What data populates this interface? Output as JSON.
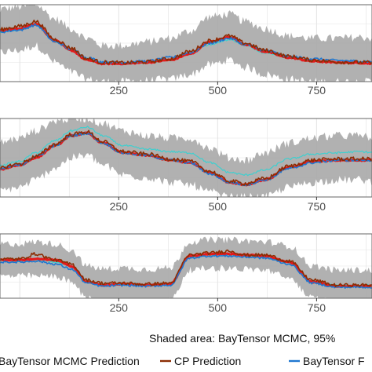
{
  "caption": "Shaded area: BayTensor MCMC, 95%",
  "legend": {
    "entries": [
      {
        "label": "BayTensor MCMC Prediction",
        "color": "#e41a1c",
        "icon": "line-swatch"
      },
      {
        "label": "CP Prediction",
        "color": "#8c2d04",
        "icon": "line-swatch"
      },
      {
        "label": "BayTensor F",
        "color": "#1f77d0",
        "icon": "line-swatch"
      }
    ]
  },
  "colors": {
    "band": "#a9a9a9",
    "mcmc": "#e41a1c",
    "cp": "#8c2d04",
    "other": "#1f77d0",
    "extra": "#3fcfcf",
    "grid": "#e3e3e3",
    "frame": "#666666"
  },
  "chart_data": [
    {
      "type": "line",
      "panel": 1,
      "xlim": [
        -60,
        900
      ],
      "ylim": [
        -1.6,
        1.6
      ],
      "x_ticks": [
        250,
        500,
        750
      ],
      "x_tick_labels": [
        "250",
        "500",
        "750"
      ],
      "grid": true,
      "anchors_x": [
        -60,
        0,
        40,
        90,
        130,
        170,
        210,
        260,
        320,
        380,
        430,
        480,
        530,
        570,
        620,
        680,
        740,
        800,
        860,
        900
      ],
      "series": [
        {
          "name": "BayTensor MCMC Prediction",
          "values": [
            0.5,
            0.6,
            0.8,
            0.1,
            -0.3,
            -0.7,
            -0.85,
            -0.85,
            -0.8,
            -0.7,
            -0.45,
            0.05,
            0.25,
            -0.05,
            -0.35,
            -0.6,
            -0.75,
            -0.8,
            -0.82,
            -0.85
          ]
        },
        {
          "name": "CP Prediction",
          "values": [
            0.55,
            0.7,
            0.9,
            0.15,
            -0.2,
            -0.65,
            -0.8,
            -0.82,
            -0.78,
            -0.65,
            -0.35,
            0.1,
            0.3,
            0.0,
            -0.3,
            -0.55,
            -0.7,
            -0.78,
            -0.8,
            -0.82
          ]
        },
        {
          "name": "BayTensor F",
          "values": [
            0.45,
            0.55,
            0.75,
            0.05,
            -0.25,
            -0.6,
            -0.78,
            -0.8,
            -0.75,
            -0.6,
            -0.4,
            0.0,
            0.2,
            -0.05,
            -0.3,
            -0.55,
            -0.65,
            -0.72,
            -0.75,
            -0.78
          ]
        },
        {
          "name": "",
          "values": [
            0.45,
            0.55,
            0.75,
            0.05,
            -0.3,
            -0.65,
            -0.82,
            -0.85,
            -0.82,
            -0.7,
            -0.45,
            -0.05,
            0.15,
            -0.1,
            -0.4,
            -0.6,
            -0.72,
            -0.78,
            -0.8,
            -0.82
          ]
        }
      ],
      "band": {
        "upper": [
          1.4,
          1.5,
          1.6,
          1.0,
          0.6,
          0.2,
          -0.1,
          -0.1,
          0.05,
          0.2,
          0.5,
          1.1,
          1.2,
          0.9,
          0.6,
          0.3,
          0.2,
          0.2,
          0.25,
          0.2
        ],
        "lower": [
          -0.4,
          -0.3,
          -0.1,
          -0.8,
          -1.2,
          -1.5,
          -1.6,
          -1.6,
          -1.55,
          -1.5,
          -1.3,
          -0.9,
          -0.7,
          -1.0,
          -1.3,
          -1.5,
          -1.6,
          -1.6,
          -1.6,
          -1.6
        ]
      }
    },
    {
      "type": "line",
      "panel": 2,
      "xlim": [
        -60,
        900
      ],
      "ylim": [
        -1.6,
        1.6
      ],
      "x_ticks": [
        250,
        500,
        750
      ],
      "x_tick_labels": [
        "250",
        "500",
        "750"
      ],
      "grid": true,
      "anchors_x": [
        -60,
        0,
        40,
        90,
        130,
        170,
        210,
        260,
        320,
        380,
        430,
        480,
        530,
        570,
        620,
        680,
        740,
        800,
        860,
        900
      ],
      "series": [
        {
          "name": "BayTensor MCMC Prediction",
          "values": [
            -0.5,
            -0.3,
            0.0,
            0.5,
            0.9,
            1.0,
            0.6,
            0.2,
            0.1,
            -0.1,
            -0.2,
            -0.6,
            -1.0,
            -1.1,
            -0.9,
            -0.4,
            -0.15,
            -0.1,
            -0.1,
            -0.1
          ]
        },
        {
          "name": "CP Prediction",
          "values": [
            -0.45,
            -0.25,
            0.05,
            0.55,
            0.95,
            1.05,
            0.65,
            0.25,
            0.15,
            -0.05,
            -0.15,
            -0.55,
            -0.95,
            -1.05,
            -0.85,
            -0.35,
            -0.1,
            -0.05,
            -0.05,
            -0.05
          ]
        },
        {
          "name": "BayTensor F",
          "values": [
            -0.5,
            -0.3,
            0.05,
            0.5,
            0.9,
            1.0,
            0.6,
            0.2,
            0.1,
            -0.1,
            -0.2,
            -0.65,
            -1.0,
            -1.1,
            -0.9,
            -0.45,
            -0.2,
            -0.1,
            -0.1,
            -0.1
          ]
        },
        {
          "name": "",
          "values": [
            -0.35,
            -0.15,
            0.2,
            0.7,
            1.1,
            1.25,
            0.9,
            0.5,
            0.35,
            0.25,
            0.2,
            -0.2,
            -0.6,
            -0.7,
            -0.5,
            -0.05,
            0.15,
            0.2,
            0.25,
            0.2
          ]
        }
      ],
      "band": {
        "upper": [
          0.6,
          0.8,
          1.1,
          1.5,
          1.6,
          1.6,
          1.4,
          1.1,
          0.9,
          0.8,
          0.8,
          0.4,
          0.0,
          -0.1,
          0.2,
          0.6,
          0.8,
          0.9,
          0.9,
          0.8
        ],
        "lower": [
          -1.4,
          -1.2,
          -0.9,
          -0.4,
          0.0,
          0.1,
          -0.3,
          -0.7,
          -0.8,
          -1.0,
          -1.1,
          -1.4,
          -1.6,
          -1.6,
          -1.6,
          -1.2,
          -1.0,
          -0.9,
          -0.9,
          -1.0
        ]
      }
    },
    {
      "type": "line",
      "panel": 3,
      "xlim": [
        -60,
        900
      ],
      "ylim": [
        -1.6,
        1.6
      ],
      "x_ticks": [
        250,
        500,
        750
      ],
      "x_tick_labels": [
        "250",
        "500",
        "750"
      ],
      "grid": true,
      "anchors_x": [
        -60,
        0,
        40,
        90,
        130,
        170,
        210,
        260,
        320,
        380,
        430,
        480,
        530,
        570,
        620,
        680,
        740,
        800,
        860,
        900
      ],
      "series": [
        {
          "name": "BayTensor MCMC Prediction",
          "values": [
            0.3,
            0.3,
            0.35,
            0.3,
            0.0,
            -0.8,
            -0.95,
            -0.9,
            -0.95,
            -0.9,
            0.5,
            0.6,
            0.6,
            0.55,
            0.5,
            0.2,
            -0.8,
            -1.0,
            -1.0,
            -1.0
          ]
        },
        {
          "name": "CP Prediction",
          "values": [
            0.35,
            0.35,
            0.6,
            0.3,
            0.1,
            -0.7,
            -0.85,
            -0.85,
            -0.9,
            -0.85,
            0.55,
            0.65,
            0.75,
            0.55,
            0.55,
            0.25,
            -0.7,
            -0.95,
            -0.95,
            -0.95
          ]
        },
        {
          "name": "BayTensor F",
          "values": [
            0.2,
            0.2,
            0.25,
            0.1,
            -0.15,
            -0.85,
            -1.0,
            -0.95,
            -1.0,
            -0.95,
            0.4,
            0.5,
            0.5,
            0.45,
            0.4,
            0.1,
            -0.85,
            -1.05,
            -1.05,
            -1.05
          ]
        },
        {
          "name": "",
          "values": [
            0.25,
            0.25,
            0.3,
            0.2,
            -0.05,
            -0.75,
            -0.9,
            -0.85,
            -0.9,
            -0.85,
            0.45,
            0.55,
            0.55,
            0.5,
            0.45,
            0.15,
            -0.75,
            -0.95,
            -0.95,
            -0.95
          ]
        }
      ],
      "band": {
        "upper": [
          1.1,
          1.1,
          1.2,
          1.1,
          0.8,
          0.0,
          -0.15,
          -0.1,
          -0.15,
          -0.1,
          1.2,
          1.3,
          1.3,
          1.25,
          1.2,
          1.0,
          0.0,
          -0.2,
          -0.2,
          -0.2
        ]
      },
      "band_lower_placeholder": null
    }
  ]
}
